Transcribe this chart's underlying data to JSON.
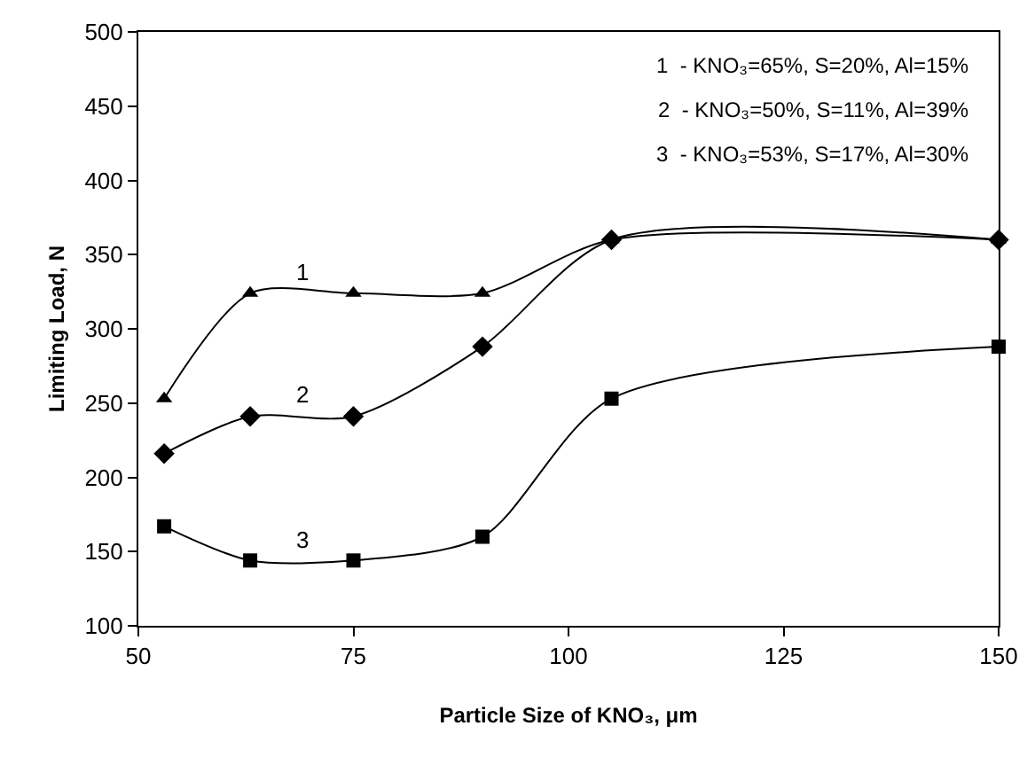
{
  "chart_data": {
    "type": "line",
    "xlabel": "Particle Size of KNO₃, μm",
    "ylabel": "Limiting Load, N",
    "x": [
      53,
      63,
      75,
      90,
      105,
      150
    ],
    "series": [
      {
        "name": "1",
        "color": "#000000",
        "marker": "triangle",
        "values": [
          253,
          324,
          324,
          324,
          360,
          360
        ]
      },
      {
        "name": "2",
        "color": "#000000",
        "marker": "diamond",
        "values": [
          216,
          241,
          241,
          288,
          360,
          360
        ]
      },
      {
        "name": "3",
        "color": "#000000",
        "marker": "square",
        "values": [
          167,
          144,
          144,
          160,
          253,
          288
        ]
      }
    ],
    "annotations": [
      "1  - KNO₃=65%, S=20%, Al=15%",
      "2  - KNO₃=50%, S=11%, Al=39%",
      "3  - KNO₃=53%, S=17%, Al=30%"
    ],
    "xlim": [
      50,
      150
    ],
    "xticks": [
      50,
      75,
      100,
      125,
      150
    ],
    "ylim": [
      100,
      500
    ],
    "yticks": [
      100,
      150,
      200,
      250,
      300,
      350,
      400,
      450,
      500
    ],
    "grid": false,
    "legend": false,
    "line_style": "solid"
  }
}
